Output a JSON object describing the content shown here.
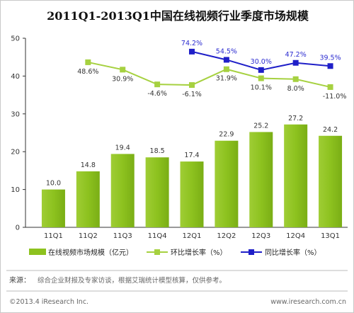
{
  "title": "2011Q1-2013Q1中国在线视频行业季度市场规模",
  "chart_data": {
    "type": "bar",
    "categories": [
      "11Q1",
      "11Q2",
      "11Q3",
      "11Q4",
      "12Q1",
      "12Q2",
      "12Q3",
      "12Q4",
      "13Q1"
    ],
    "ylim": [
      0,
      50
    ],
    "yticks": [
      0,
      10,
      20,
      30,
      40,
      50
    ],
    "bars": {
      "name": "在线视频市场规模（亿元）",
      "values": [
        10.0,
        14.8,
        19.4,
        18.5,
        17.4,
        22.9,
        25.2,
        27.2,
        24.2
      ],
      "labels": [
        "10.0",
        "14.8",
        "19.4",
        "18.5",
        "17.4",
        "22.9",
        "25.2",
        "27.2",
        "24.2"
      ],
      "color": "#8dc21f"
    },
    "qoq": {
      "name": "环比增长率（%）",
      "values": [
        null,
        48.6,
        30.9,
        -4.6,
        -6.1,
        31.9,
        10.1,
        8.0,
        -11.0
      ],
      "labels": [
        null,
        "48.6%",
        "30.9%",
        "-4.6%",
        "-6.1%",
        "31.9%",
        "10.1%",
        "8.0%",
        "-11.0%"
      ],
      "color": "#a6d140"
    },
    "yoy": {
      "name": "同比增长率（%）",
      "values": [
        null,
        null,
        null,
        null,
        74.2,
        54.5,
        30.0,
        47.2,
        39.5
      ],
      "labels": [
        null,
        null,
        null,
        null,
        "74.2%",
        "54.5%",
        "30.0%",
        "47.2%",
        "39.5%"
      ],
      "color": "#1f1fc8"
    },
    "grid": false,
    "legend": "bottom"
  },
  "source": {
    "label": "来源：",
    "text": "综合企业财报及专家访谈，根据艾瑞统计模型核算，仅供参考。"
  },
  "footer": {
    "copyright": "©2013.4 iResearch Inc.",
    "website": "www.iresearch.com.cn"
  }
}
